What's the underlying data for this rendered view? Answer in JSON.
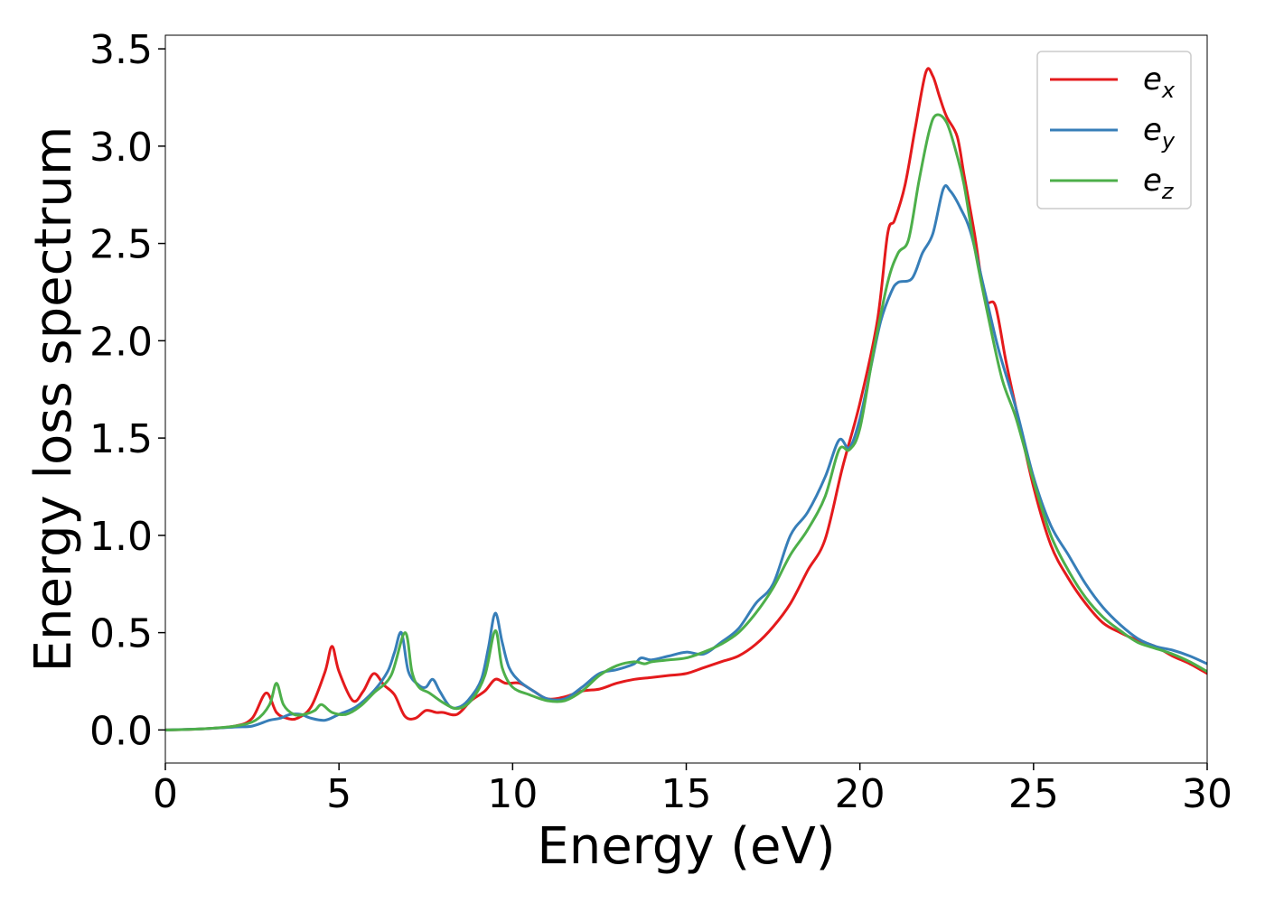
{
  "chart_data": {
    "type": "line",
    "title": "",
    "xlabel": "Energy (eV)",
    "ylabel": "Energy loss spectrum",
    "xlim": [
      0,
      30
    ],
    "ylim": [
      -0.17,
      3.57
    ],
    "xticks": [
      0,
      5,
      10,
      15,
      20,
      25,
      30
    ],
    "yticks": [
      0.0,
      0.5,
      1.0,
      1.5,
      2.0,
      2.5,
      3.0,
      3.5
    ],
    "xtick_labels": [
      "0",
      "5",
      "10",
      "15",
      "20",
      "25",
      "30"
    ],
    "ytick_labels": [
      "0.0",
      "0.5",
      "1.0",
      "1.5",
      "2.0",
      "2.5",
      "3.0",
      "3.5"
    ],
    "grid": false,
    "legend_position": "top-right",
    "series": [
      {
        "name": "e_x",
        "legend_base": "e",
        "legend_sub": "x",
        "color": "#e41a1c",
        "points": [
          [
            0,
            0
          ],
          [
            1,
            0.005
          ],
          [
            2,
            0.02
          ],
          [
            2.5,
            0.06
          ],
          [
            2.9,
            0.19
          ],
          [
            3.2,
            0.09
          ],
          [
            3.5,
            0.06
          ],
          [
            3.8,
            0.06
          ],
          [
            4.2,
            0.12
          ],
          [
            4.6,
            0.3
          ],
          [
            4.8,
            0.43
          ],
          [
            5.0,
            0.3
          ],
          [
            5.4,
            0.15
          ],
          [
            5.7,
            0.2
          ],
          [
            6.0,
            0.29
          ],
          [
            6.3,
            0.23
          ],
          [
            6.6,
            0.18
          ],
          [
            6.9,
            0.07
          ],
          [
            7.2,
            0.06
          ],
          [
            7.5,
            0.1
          ],
          [
            7.8,
            0.09
          ],
          [
            8.0,
            0.09
          ],
          [
            8.4,
            0.08
          ],
          [
            8.8,
            0.15
          ],
          [
            9.2,
            0.2
          ],
          [
            9.5,
            0.26
          ],
          [
            9.8,
            0.24
          ],
          [
            10.2,
            0.24
          ],
          [
            10.6,
            0.2
          ],
          [
            11.0,
            0.16
          ],
          [
            11.5,
            0.17
          ],
          [
            12.0,
            0.2
          ],
          [
            12.5,
            0.21
          ],
          [
            13.0,
            0.24
          ],
          [
            13.5,
            0.26
          ],
          [
            14.0,
            0.27
          ],
          [
            14.5,
            0.28
          ],
          [
            15.0,
            0.29
          ],
          [
            15.5,
            0.32
          ],
          [
            16.0,
            0.35
          ],
          [
            16.5,
            0.38
          ],
          [
            17.0,
            0.44
          ],
          [
            17.5,
            0.53
          ],
          [
            18.0,
            0.65
          ],
          [
            18.5,
            0.82
          ],
          [
            19.0,
            0.98
          ],
          [
            19.5,
            1.35
          ],
          [
            20.0,
            1.68
          ],
          [
            20.5,
            2.1
          ],
          [
            20.8,
            2.55
          ],
          [
            21.0,
            2.62
          ],
          [
            21.3,
            2.8
          ],
          [
            21.6,
            3.1
          ],
          [
            21.9,
            3.38
          ],
          [
            22.1,
            3.36
          ],
          [
            22.3,
            3.25
          ],
          [
            22.5,
            3.15
          ],
          [
            22.8,
            3.05
          ],
          [
            23.0,
            2.85
          ],
          [
            23.3,
            2.55
          ],
          [
            23.6,
            2.22
          ],
          [
            23.9,
            2.18
          ],
          [
            24.2,
            1.9
          ],
          [
            24.5,
            1.65
          ],
          [
            25.0,
            1.25
          ],
          [
            25.5,
            0.95
          ],
          [
            26.0,
            0.78
          ],
          [
            26.5,
            0.65
          ],
          [
            27.0,
            0.55
          ],
          [
            27.5,
            0.5
          ],
          [
            28.0,
            0.46
          ],
          [
            28.5,
            0.43
          ],
          [
            29.0,
            0.38
          ],
          [
            29.5,
            0.34
          ],
          [
            30.0,
            0.29
          ]
        ]
      },
      {
        "name": "e_y",
        "legend_base": "e",
        "legend_sub": "y",
        "color": "#377eb8",
        "points": [
          [
            0,
            0
          ],
          [
            1,
            0.005
          ],
          [
            2,
            0.015
          ],
          [
            2.5,
            0.02
          ],
          [
            3.0,
            0.05
          ],
          [
            3.3,
            0.06
          ],
          [
            3.6,
            0.08
          ],
          [
            3.9,
            0.08
          ],
          [
            4.2,
            0.06
          ],
          [
            4.6,
            0.05
          ],
          [
            5.0,
            0.08
          ],
          [
            5.5,
            0.12
          ],
          [
            6.0,
            0.2
          ],
          [
            6.4,
            0.3
          ],
          [
            6.6,
            0.4
          ],
          [
            6.8,
            0.5
          ],
          [
            7.0,
            0.3
          ],
          [
            7.3,
            0.23
          ],
          [
            7.5,
            0.22
          ],
          [
            7.7,
            0.26
          ],
          [
            7.9,
            0.2
          ],
          [
            8.2,
            0.12
          ],
          [
            8.5,
            0.12
          ],
          [
            8.8,
            0.17
          ],
          [
            9.1,
            0.26
          ],
          [
            9.3,
            0.42
          ],
          [
            9.5,
            0.6
          ],
          [
            9.7,
            0.45
          ],
          [
            9.9,
            0.32
          ],
          [
            10.2,
            0.25
          ],
          [
            10.6,
            0.2
          ],
          [
            11.0,
            0.16
          ],
          [
            11.5,
            0.16
          ],
          [
            12.0,
            0.22
          ],
          [
            12.5,
            0.29
          ],
          [
            13.0,
            0.31
          ],
          [
            13.5,
            0.34
          ],
          [
            13.7,
            0.37
          ],
          [
            14.0,
            0.36
          ],
          [
            14.5,
            0.38
          ],
          [
            15.0,
            0.4
          ],
          [
            15.5,
            0.39
          ],
          [
            16.0,
            0.45
          ],
          [
            16.5,
            0.52
          ],
          [
            17.0,
            0.65
          ],
          [
            17.5,
            0.75
          ],
          [
            18.0,
            1.0
          ],
          [
            18.5,
            1.12
          ],
          [
            19.0,
            1.3
          ],
          [
            19.4,
            1.49
          ],
          [
            19.7,
            1.45
          ],
          [
            20.0,
            1.6
          ],
          [
            20.3,
            1.85
          ],
          [
            20.6,
            2.1
          ],
          [
            20.9,
            2.25
          ],
          [
            21.1,
            2.3
          ],
          [
            21.5,
            2.32
          ],
          [
            21.8,
            2.45
          ],
          [
            22.1,
            2.55
          ],
          [
            22.4,
            2.78
          ],
          [
            22.6,
            2.77
          ],
          [
            22.9,
            2.68
          ],
          [
            23.2,
            2.55
          ],
          [
            23.6,
            2.25
          ],
          [
            24.0,
            1.95
          ],
          [
            24.5,
            1.65
          ],
          [
            25.0,
            1.3
          ],
          [
            25.5,
            1.05
          ],
          [
            26.0,
            0.9
          ],
          [
            26.5,
            0.75
          ],
          [
            27.0,
            0.63
          ],
          [
            27.5,
            0.54
          ],
          [
            28.0,
            0.47
          ],
          [
            28.5,
            0.43
          ],
          [
            29.0,
            0.41
          ],
          [
            29.5,
            0.38
          ],
          [
            30.0,
            0.34
          ]
        ]
      },
      {
        "name": "e_z",
        "legend_base": "e",
        "legend_sub": "z",
        "color": "#4daf4a",
        "points": [
          [
            0,
            0
          ],
          [
            1,
            0.005
          ],
          [
            2,
            0.02
          ],
          [
            2.6,
            0.05
          ],
          [
            3.0,
            0.13
          ],
          [
            3.2,
            0.24
          ],
          [
            3.4,
            0.13
          ],
          [
            3.7,
            0.08
          ],
          [
            4.0,
            0.08
          ],
          [
            4.3,
            0.1
          ],
          [
            4.5,
            0.13
          ],
          [
            4.8,
            0.09
          ],
          [
            5.2,
            0.08
          ],
          [
            5.6,
            0.12
          ],
          [
            6.0,
            0.19
          ],
          [
            6.5,
            0.28
          ],
          [
            6.9,
            0.5
          ],
          [
            7.1,
            0.3
          ],
          [
            7.3,
            0.22
          ],
          [
            7.6,
            0.19
          ],
          [
            8.0,
            0.14
          ],
          [
            8.4,
            0.11
          ],
          [
            8.8,
            0.15
          ],
          [
            9.2,
            0.28
          ],
          [
            9.5,
            0.51
          ],
          [
            9.7,
            0.32
          ],
          [
            10.0,
            0.22
          ],
          [
            10.5,
            0.18
          ],
          [
            11.0,
            0.15
          ],
          [
            11.5,
            0.15
          ],
          [
            12.0,
            0.2
          ],
          [
            12.5,
            0.28
          ],
          [
            13.0,
            0.33
          ],
          [
            13.5,
            0.35
          ],
          [
            13.8,
            0.34
          ],
          [
            14.0,
            0.35
          ],
          [
            14.5,
            0.36
          ],
          [
            15.0,
            0.37
          ],
          [
            15.5,
            0.4
          ],
          [
            16.0,
            0.44
          ],
          [
            16.5,
            0.5
          ],
          [
            17.0,
            0.6
          ],
          [
            17.5,
            0.73
          ],
          [
            18.0,
            0.9
          ],
          [
            18.5,
            1.03
          ],
          [
            19.0,
            1.2
          ],
          [
            19.4,
            1.44
          ],
          [
            19.7,
            1.44
          ],
          [
            20.0,
            1.55
          ],
          [
            20.4,
            1.95
          ],
          [
            20.8,
            2.3
          ],
          [
            21.1,
            2.45
          ],
          [
            21.4,
            2.52
          ],
          [
            21.7,
            2.82
          ],
          [
            22.0,
            3.08
          ],
          [
            22.2,
            3.16
          ],
          [
            22.5,
            3.12
          ],
          [
            22.8,
            2.95
          ],
          [
            23.0,
            2.8
          ],
          [
            23.3,
            2.48
          ],
          [
            23.7,
            2.12
          ],
          [
            24.1,
            1.8
          ],
          [
            24.5,
            1.6
          ],
          [
            25.0,
            1.28
          ],
          [
            25.5,
            1.0
          ],
          [
            26.0,
            0.82
          ],
          [
            26.5,
            0.68
          ],
          [
            27.0,
            0.58
          ],
          [
            27.5,
            0.51
          ],
          [
            28.0,
            0.45
          ],
          [
            28.5,
            0.42
          ],
          [
            29.0,
            0.39
          ],
          [
            29.5,
            0.35
          ],
          [
            30.0,
            0.3
          ]
        ]
      }
    ]
  }
}
